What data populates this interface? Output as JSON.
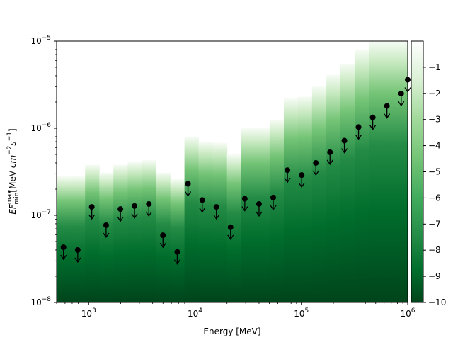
{
  "chart_data": {
    "type": "bar",
    "subtype": "sed-likelihood-profile-with-upper-limits",
    "xlabel": "Energy [MeV]",
    "ylabel": "EF^max_min [MeV cm^-2 s^-1]",
    "ylabel_main": "EF",
    "ylabel_sup": "max",
    "ylabel_sub": "min",
    "ylabel_units_prefix": "[MeV ",
    "ylabel_units_cm": "cm",
    "ylabel_units_cm_exp": "−2",
    "ylabel_units_s": "s",
    "ylabel_units_s_exp": "−1",
    "ylabel_units_suffix": "]",
    "xscale": "log",
    "yscale": "log",
    "xlim": [
      500,
      1000000
    ],
    "ylim": [
      1e-08,
      1e-05
    ],
    "x_ticks": [
      {
        "value": 1000,
        "base": "10",
        "exp": "3"
      },
      {
        "value": 10000,
        "base": "10",
        "exp": "4"
      },
      {
        "value": 100000,
        "base": "10",
        "exp": "5"
      },
      {
        "value": 1000000,
        "base": "10",
        "exp": "6"
      }
    ],
    "y_ticks": [
      {
        "value": 1e-08,
        "base": "10",
        "exp": "−8"
      },
      {
        "value": 1e-07,
        "base": "10",
        "exp": "−7"
      },
      {
        "value": 1e-06,
        "base": "10",
        "exp": "−6"
      },
      {
        "value": 1e-05,
        "base": "10",
        "exp": "−5"
      }
    ],
    "colormap": "Greens_r",
    "color_low": "#00441b",
    "color_high": "#f7fcf5",
    "colorbar": {
      "range": [
        -10,
        0
      ],
      "ticks": [
        "−1",
        "−2",
        "−3",
        "−4",
        "−5",
        "−6",
        "−7",
        "−8",
        "−9",
        "−10"
      ],
      "tick_values": [
        -1,
        -2,
        -3,
        -4,
        -5,
        -6,
        -7,
        -8,
        -9,
        -10
      ]
    },
    "bins": [
      {
        "e_min": 500,
        "e_max": 681,
        "ul": 4.3e-08,
        "top": 2.8e-07
      },
      {
        "e_min": 681,
        "e_max": 926,
        "ul": 4e-08,
        "top": 2.8e-07
      },
      {
        "e_min": 926,
        "e_max": 1260,
        "ul": 1.25e-07,
        "top": 3.8e-07
      },
      {
        "e_min": 1260,
        "e_max": 1710,
        "ul": 7.7e-08,
        "top": 3.1e-07
      },
      {
        "e_min": 1710,
        "e_max": 2330,
        "ul": 1.18e-07,
        "top": 3.8e-07
      },
      {
        "e_min": 2330,
        "e_max": 3170,
        "ul": 1.28e-07,
        "top": 4.1e-07
      },
      {
        "e_min": 3170,
        "e_max": 4310,
        "ul": 1.35e-07,
        "top": 4.3e-07
      },
      {
        "e_min": 4310,
        "e_max": 5860,
        "ul": 5.9e-08,
        "top": 3.1e-07
      },
      {
        "e_min": 5860,
        "e_max": 7960,
        "ul": 3.8e-08,
        "top": 2.6e-07
      },
      {
        "e_min": 7960,
        "e_max": 10800,
        "ul": 2.3e-07,
        "top": 8e-07
      },
      {
        "e_min": 10800,
        "e_max": 14700,
        "ul": 1.5e-07,
        "top": 7e-07
      },
      {
        "e_min": 14700,
        "e_max": 20000,
        "ul": 1.25e-07,
        "top": 6.8e-07
      },
      {
        "e_min": 20000,
        "e_max": 27200,
        "ul": 7.3e-08,
        "top": 5e-07
      },
      {
        "e_min": 27200,
        "e_max": 37000,
        "ul": 1.55e-07,
        "top": 1e-06
      },
      {
        "e_min": 37000,
        "e_max": 50300,
        "ul": 1.35e-07,
        "top": 1e-06
      },
      {
        "e_min": 50300,
        "e_max": 68400,
        "ul": 1.6e-07,
        "top": 1.25e-06
      },
      {
        "e_min": 68400,
        "e_max": 93000,
        "ul": 3.3e-07,
        "top": 2.2e-06
      },
      {
        "e_min": 93000,
        "e_max": 126000,
        "ul": 2.9e-07,
        "top": 2.3e-06
      },
      {
        "e_min": 126000,
        "e_max": 172000,
        "ul": 4e-07,
        "top": 3e-06
      },
      {
        "e_min": 172000,
        "e_max": 233000,
        "ul": 5.3e-07,
        "top": 4.1e-06
      },
      {
        "e_min": 233000,
        "e_max": 317000,
        "ul": 7.2e-07,
        "top": 5.5e-06
      },
      {
        "e_min": 317000,
        "e_max": 431000,
        "ul": 1.03e-06,
        "top": 8e-06
      },
      {
        "e_min": 431000,
        "e_max": 586000,
        "ul": 1.33e-06,
        "top": 1e-05
      },
      {
        "e_min": 586000,
        "e_max": 797000,
        "ul": 1.8e-06,
        "top": 1e-05
      },
      {
        "e_min": 797000,
        "e_max": 1000000,
        "ul": 2.5e-06,
        "top": 1e-05
      },
      {
        "e_min": 1000000,
        "e_max": 1000000,
        "ul": 3.6e-06,
        "top": 1e-05
      }
    ],
    "markers": [
      {
        "x": 580,
        "y": 4.3e-08
      },
      {
        "x": 790,
        "y": 4e-08
      },
      {
        "x": 1070,
        "y": 1.25e-07
      },
      {
        "x": 1460,
        "y": 7.7e-08
      },
      {
        "x": 1990,
        "y": 1.18e-07
      },
      {
        "x": 2700,
        "y": 1.28e-07
      },
      {
        "x": 3680,
        "y": 1.35e-07
      },
      {
        "x": 5000,
        "y": 5.9e-08
      },
      {
        "x": 6810,
        "y": 3.8e-08
      },
      {
        "x": 8590,
        "y": 2.3e-07
      },
      {
        "x": 11700,
        "y": 1.5e-07
      },
      {
        "x": 15900,
        "y": 1.25e-07
      },
      {
        "x": 21600,
        "y": 7.3e-08
      },
      {
        "x": 29400,
        "y": 1.55e-07
      },
      {
        "x": 40000,
        "y": 1.35e-07
      },
      {
        "x": 54400,
        "y": 1.6e-07
      },
      {
        "x": 74000,
        "y": 3.3e-07
      },
      {
        "x": 100700,
        "y": 2.9e-07
      },
      {
        "x": 137000,
        "y": 4e-07
      },
      {
        "x": 186000,
        "y": 5.3e-07
      },
      {
        "x": 254000,
        "y": 7.2e-07
      },
      {
        "x": 345000,
        "y": 1.03e-06
      },
      {
        "x": 469000,
        "y": 1.33e-06
      },
      {
        "x": 638000,
        "y": 1.8e-06
      },
      {
        "x": 868000,
        "y": 2.5e-06
      },
      {
        "x": 1000000,
        "y": 3.6e-06
      }
    ]
  }
}
